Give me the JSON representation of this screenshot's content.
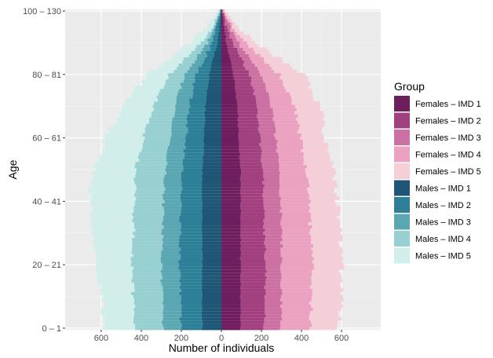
{
  "chart_data": {
    "type": "bar",
    "orientation": "horizontal-diverging",
    "xlabel": "Number of individuals",
    "ylabel": "Age",
    "xlim": [
      -780,
      780
    ],
    "xticks": [
      -600,
      -400,
      -200,
      0,
      200,
      400,
      600
    ],
    "xtick_labels": [
      "600",
      "400",
      "200",
      "0",
      "200",
      "400",
      "600"
    ],
    "yticks": [
      0,
      20,
      40,
      60,
      80,
      100
    ],
    "ytick_labels": [
      "0 – 1",
      "20 – 21",
      "40 – 41",
      "60 – 61",
      "80 – 81",
      "100 – 130"
    ],
    "grid": true,
    "legend_title": "Group",
    "legend_position": "right",
    "age_groups": 101,
    "cumulative_profiles": {
      "note_ages": [
        0,
        10,
        20,
        30,
        40,
        50,
        60,
        70,
        80,
        90,
        95,
        100
      ],
      "Females": [
        [
          95,
          95,
          95,
          95,
          95,
          95,
          85,
          80,
          60,
          25,
          12,
          3
        ],
        [
          215,
          215,
          220,
          215,
          210,
          205,
          190,
          175,
          140,
          55,
          28,
          6
        ],
        [
          295,
          300,
          300,
          300,
          295,
          290,
          270,
          250,
          200,
          85,
          42,
          9
        ],
        [
          445,
          450,
          455,
          445,
          440,
          425,
          395,
          365,
          290,
          120,
          60,
          12
        ],
        [
          590,
          595,
          600,
          590,
          580,
          560,
          520,
          490,
          410,
          170,
          85,
          17
        ]
      ],
      "Males": [
        [
          95,
          95,
          95,
          95,
          95,
          95,
          85,
          80,
          60,
          20,
          10,
          2
        ],
        [
          200,
          205,
          210,
          205,
          200,
          195,
          175,
          160,
          125,
          45,
          22,
          4
        ],
        [
          290,
          295,
          300,
          295,
          290,
          280,
          255,
          230,
          185,
          70,
          35,
          6
        ],
        [
          430,
          440,
          450,
          440,
          435,
          430,
          390,
          340,
          260,
          100,
          50,
          8
        ],
        [
          590,
          600,
          620,
          640,
          660,
          640,
          580,
          490,
          370,
          150,
          75,
          12
        ]
      ]
    },
    "series": [
      {
        "name": "Females – IMD 1",
        "color": "#6c1e5e"
      },
      {
        "name": "Females – IMD 2",
        "color": "#a0407e"
      },
      {
        "name": "Females – IMD 3",
        "color": "#cb70a2"
      },
      {
        "name": "Females – IMD 4",
        "color": "#eaa2c0"
      },
      {
        "name": "Females – IMD 5",
        "color": "#f5cfd8"
      },
      {
        "name": "Males – IMD 1",
        "color": "#1f5575"
      },
      {
        "name": "Males – IMD 2",
        "color": "#2d7f98"
      },
      {
        "name": "Males – IMD 3",
        "color": "#5aa7b3"
      },
      {
        "name": "Males – IMD 4",
        "color": "#98cfd0"
      },
      {
        "name": "Males – IMD 5",
        "color": "#d2eeea"
      }
    ]
  }
}
